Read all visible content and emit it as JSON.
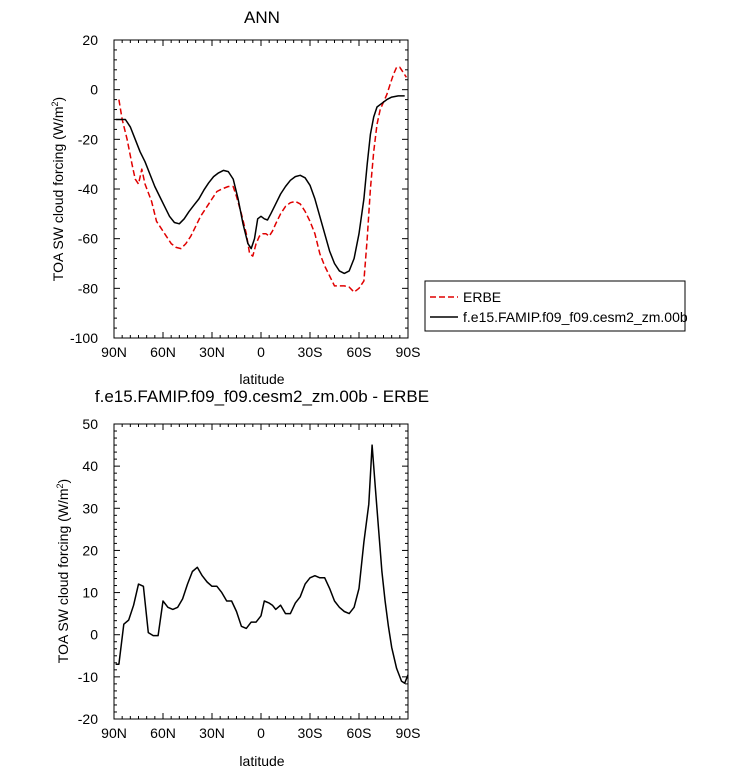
{
  "chart_data": [
    {
      "type": "line",
      "title": "ANN",
      "xlabel": "latitude",
      "ylabel": "TOA SW cloud forcing (W/m",
      "ylabel_sup": "2",
      "ylabel_close": ")",
      "x_ticks": [
        "90N",
        "60N",
        "30N",
        "0",
        "30S",
        "60S",
        "90S"
      ],
      "x_tick_values": [
        -90,
        -60,
        -30,
        0,
        30,
        60,
        90
      ],
      "ylim": [
        -100,
        20
      ],
      "y_ticks": [
        20,
        0,
        -20,
        -40,
        -60,
        -80,
        -100
      ],
      "xlim": [
        -90,
        90
      ],
      "legend_position": "right",
      "series": [
        {
          "name": "ERBE",
          "color": "#e00000",
          "dash": "dashed",
          "points": [
            [
              -87,
              -4
            ],
            [
              -85,
              -12
            ],
            [
              -82,
              -20
            ],
            [
              -79,
              -30
            ],
            [
              -77,
              -36
            ],
            [
              -75,
              -38
            ],
            [
              -73,
              -32
            ],
            [
              -71,
              -38
            ],
            [
              -67,
              -45
            ],
            [
              -64,
              -53
            ],
            [
              -61,
              -56
            ],
            [
              -58,
              -59
            ],
            [
              -55,
              -62
            ],
            [
              -52,
              -63.5
            ],
            [
              -49,
              -64
            ],
            [
              -46,
              -62
            ],
            [
              -43,
              -59
            ],
            [
              -40,
              -55
            ],
            [
              -37,
              -51
            ],
            [
              -34,
              -48
            ],
            [
              -30,
              -44
            ],
            [
              -27,
              -41
            ],
            [
              -24,
              -40
            ],
            [
              -20,
              -39
            ],
            [
              -17,
              -39
            ],
            [
              -15,
              -43
            ],
            [
              -12,
              -50
            ],
            [
              -9,
              -58
            ],
            [
              -7,
              -66
            ],
            [
              -5,
              -67
            ],
            [
              -3,
              -62
            ],
            [
              -1,
              -59
            ],
            [
              1,
              -58
            ],
            [
              3,
              -58
            ],
            [
              5,
              -59
            ],
            [
              7,
              -57
            ],
            [
              9,
              -54
            ],
            [
              12,
              -50
            ],
            [
              15,
              -47
            ],
            [
              18,
              -45.5
            ],
            [
              21,
              -45
            ],
            [
              24,
              -46
            ],
            [
              27,
              -49
            ],
            [
              30,
              -53
            ],
            [
              33,
              -58
            ],
            [
              36,
              -66
            ],
            [
              39,
              -71
            ],
            [
              42,
              -75
            ],
            [
              45,
              -79
            ],
            [
              48,
              -79
            ],
            [
              51,
              -79
            ],
            [
              54,
              -79.5
            ],
            [
              57,
              -81.5
            ],
            [
              60,
              -80
            ],
            [
              63,
              -77
            ],
            [
              65,
              -60
            ],
            [
              67,
              -40
            ],
            [
              69,
              -25
            ],
            [
              71,
              -14
            ],
            [
              73,
              -8
            ],
            [
              75,
              -5
            ],
            [
              77,
              -2
            ],
            [
              79,
              2
            ],
            [
              81,
              6
            ],
            [
              83,
              9
            ],
            [
              85,
              9
            ],
            [
              87,
              7
            ],
            [
              89,
              5
            ]
          ]
        },
        {
          "name": "f.e15.FAMIP.f09_f09.cesm2_zm.00b",
          "color": "#000000",
          "dash": "solid",
          "points": [
            [
              -89,
              -12
            ],
            [
              -86,
              -12
            ],
            [
              -83,
              -12
            ],
            [
              -80,
              -15
            ],
            [
              -77,
              -20
            ],
            [
              -74,
              -25
            ],
            [
              -71,
              -29
            ],
            [
              -68,
              -34
            ],
            [
              -65,
              -39
            ],
            [
              -62,
              -43
            ],
            [
              -59,
              -47
            ],
            [
              -56,
              -51
            ],
            [
              -53,
              -53.5
            ],
            [
              -50,
              -54
            ],
            [
              -47,
              -52
            ],
            [
              -44,
              -49
            ],
            [
              -41,
              -46.5
            ],
            [
              -38,
              -44
            ],
            [
              -35,
              -40.5
            ],
            [
              -32,
              -37.5
            ],
            [
              -29,
              -35
            ],
            [
              -26,
              -33.5
            ],
            [
              -23,
              -32.5
            ],
            [
              -20,
              -33
            ],
            [
              -17,
              -36
            ],
            [
              -14,
              -44
            ],
            [
              -11,
              -54
            ],
            [
              -8,
              -62
            ],
            [
              -6,
              -64
            ],
            [
              -4,
              -60
            ],
            [
              -2,
              -52
            ],
            [
              0,
              -51
            ],
            [
              2,
              -52
            ],
            [
              4,
              -52.5
            ],
            [
              6,
              -50
            ],
            [
              9,
              -46
            ],
            [
              12,
              -42
            ],
            [
              15,
              -39
            ],
            [
              18,
              -36.5
            ],
            [
              21,
              -35
            ],
            [
              24,
              -34.5
            ],
            [
              27,
              -35.5
            ],
            [
              30,
              -38.5
            ],
            [
              33,
              -44
            ],
            [
              36,
              -51
            ],
            [
              39,
              -58
            ],
            [
              42,
              -65
            ],
            [
              45,
              -70
            ],
            [
              48,
              -73
            ],
            [
              51,
              -74
            ],
            [
              54,
              -73
            ],
            [
              57,
              -68
            ],
            [
              60,
              -58
            ],
            [
              63,
              -44
            ],
            [
              65,
              -30
            ],
            [
              67,
              -18
            ],
            [
              69,
              -11
            ],
            [
              71,
              -7
            ],
            [
              74,
              -5.5
            ],
            [
              77,
              -4
            ],
            [
              80,
              -3
            ],
            [
              84,
              -2.5
            ],
            [
              88,
              -2.5
            ]
          ]
        }
      ]
    },
    {
      "type": "line",
      "title": "f.e15.FAMIP.f09_f09.cesm2_zm.00b - ERBE",
      "xlabel": "latitude",
      "ylabel": "TOA SW cloud forcing (W/m",
      "ylabel_sup": "2",
      "ylabel_close": ")",
      "x_ticks": [
        "90N",
        "60N",
        "30N",
        "0",
        "30S",
        "60S",
        "90S"
      ],
      "x_tick_values": [
        -90,
        -60,
        -30,
        0,
        30,
        60,
        90
      ],
      "ylim": [
        -20,
        50
      ],
      "y_ticks": [
        50,
        40,
        30,
        20,
        10,
        0,
        -10,
        -20
      ],
      "xlim": [
        -90,
        90
      ],
      "series": [
        {
          "color": "#000000",
          "dash": "solid",
          "points": [
            [
              -89,
              -7
            ],
            [
              -87,
              -7
            ],
            [
              -84,
              2.5
            ],
            [
              -81,
              3.5
            ],
            [
              -78,
              7
            ],
            [
              -75,
              12
            ],
            [
              -72,
              11.5
            ],
            [
              -69,
              0.5
            ],
            [
              -66,
              -0.2
            ],
            [
              -63,
              -0.2
            ],
            [
              -60,
              8
            ],
            [
              -57,
              6.5
            ],
            [
              -54,
              6
            ],
            [
              -51,
              6.5
            ],
            [
              -48,
              8.5
            ],
            [
              -45,
              12
            ],
            [
              -42,
              15
            ],
            [
              -39,
              16
            ],
            [
              -36,
              14
            ],
            [
              -33,
              12.5
            ],
            [
              -30,
              11.5
            ],
            [
              -27,
              11.5
            ],
            [
              -24,
              10
            ],
            [
              -21,
              8
            ],
            [
              -18,
              8
            ],
            [
              -15,
              5.5
            ],
            [
              -12,
              2
            ],
            [
              -9,
              1.5
            ],
            [
              -6,
              3
            ],
            [
              -3,
              3
            ],
            [
              0,
              4.5
            ],
            [
              2,
              8
            ],
            [
              5,
              7.5
            ],
            [
              7,
              7
            ],
            [
              9,
              6
            ],
            [
              12,
              7
            ],
            [
              15,
              5
            ],
            [
              18,
              5
            ],
            [
              21,
              7.5
            ],
            [
              24,
              9
            ],
            [
              27,
              12
            ],
            [
              30,
              13.5
            ],
            [
              33,
              14
            ],
            [
              36,
              13.5
            ],
            [
              39,
              13.5
            ],
            [
              42,
              11
            ],
            [
              45,
              8
            ],
            [
              48,
              6.5
            ],
            [
              51,
              5.5
            ],
            [
              54,
              5
            ],
            [
              57,
              6.5
            ],
            [
              60,
              11
            ],
            [
              63,
              22
            ],
            [
              66,
              31
            ],
            [
              68,
              45
            ],
            [
              70,
              35
            ],
            [
              72,
              25
            ],
            [
              74,
              15
            ],
            [
              76,
              8
            ],
            [
              78,
              2
            ],
            [
              80,
              -3
            ],
            [
              83,
              -8
            ],
            [
              86,
              -11
            ],
            [
              88,
              -11.5
            ],
            [
              90,
              -9.5
            ]
          ]
        }
      ]
    }
  ]
}
